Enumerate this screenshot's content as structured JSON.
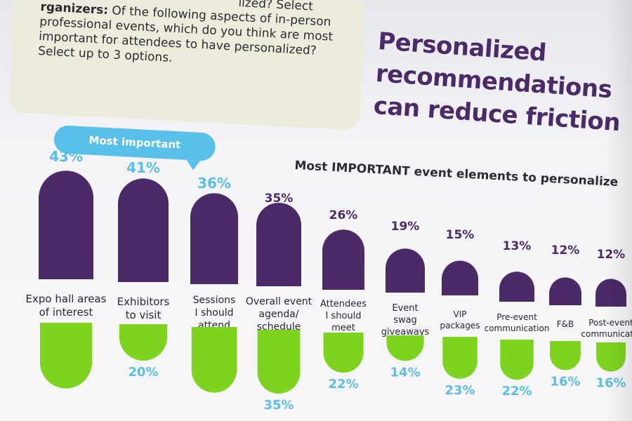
{
  "slide": {
    "question_top_fragment": "lized? Select",
    "question_bold": "rganizers:",
    "question_text": "Of the following aspects of in-person professional events, which do you think are most important for attendees to have personalized? Select up to 3 options.",
    "headline": [
      "Personalized",
      "recommendations",
      "can reduce friction"
    ],
    "callout": "Most important"
  },
  "colors": {
    "purple": "#4b2a68",
    "green": "#7ed321",
    "blue_label": "#5bbde8",
    "purple_label": "#4b2a68"
  },
  "chart_data": {
    "type": "bar",
    "title": "Most IMPORTANT event elements to personalize",
    "categories": [
      [
        "Expo hall areas",
        "of interest"
      ],
      [
        "Exhibitors",
        "to visit"
      ],
      [
        "Sessions",
        "I should",
        "attend"
      ],
      [
        "Overall event",
        "agenda/",
        "schedule"
      ],
      [
        "Attendees",
        "I should",
        "meet"
      ],
      [
        "Event",
        "swag",
        "giveaways"
      ],
      [
        "VIP",
        "packages"
      ],
      [
        "Pre-event",
        "communication"
      ],
      [
        "F&B"
      ],
      [
        "Post-event",
        "communicatio"
      ]
    ],
    "series": [
      {
        "values": [
          43,
          41,
          36,
          35,
          26,
          19,
          15,
          13,
          12,
          12
        ]
      },
      {
        "values": [
          null,
          20,
          null,
          35,
          22,
          14,
          23,
          22,
          16,
          16
        ]
      }
    ],
    "value_labels_top": [
      "43%",
      "41%",
      "36%",
      "35%",
      "26%",
      "19%",
      "15%",
      "13%",
      "12%",
      "12%"
    ],
    "value_labels_bottom": [
      "",
      "20%",
      "",
      "35%",
      "22%",
      "14%",
      "23%",
      "22%",
      "16%",
      "16%"
    ]
  }
}
